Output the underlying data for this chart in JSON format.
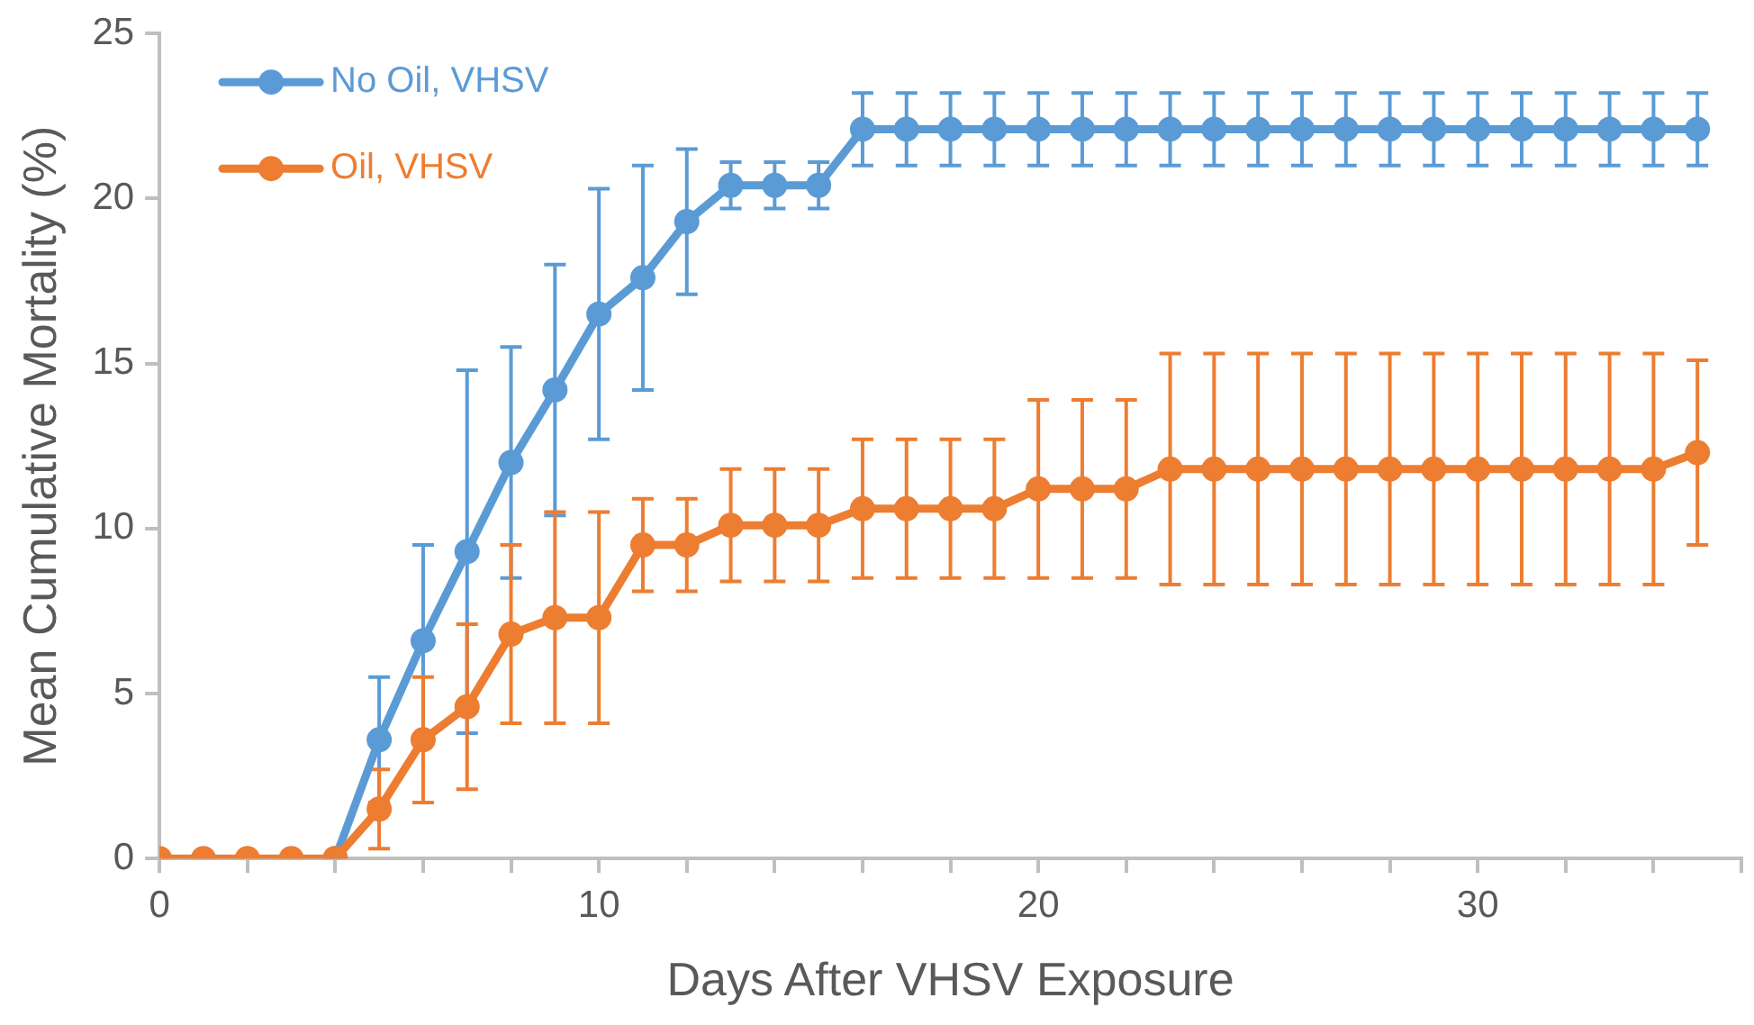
{
  "chart_data": {
    "type": "line",
    "xlabel": "Days After VHSV Exposure",
    "ylabel": "Mean Cumulative Mortality (%)",
    "x": [
      0,
      1,
      2,
      3,
      4,
      5,
      6,
      7,
      8,
      9,
      10,
      11,
      12,
      13,
      14,
      15,
      16,
      17,
      18,
      19,
      20,
      21,
      22,
      23,
      24,
      25,
      26,
      27,
      28,
      29,
      30,
      31,
      32,
      33,
      34,
      35
    ],
    "series": [
      {
        "name": "No Oil, VHSV",
        "color": "#5b9bd5",
        "values": [
          null,
          null,
          null,
          null,
          0,
          3.6,
          6.6,
          9.3,
          12.0,
          14.2,
          16.5,
          17.6,
          19.3,
          20.4,
          20.4,
          20.4,
          22.1,
          22.1,
          22.1,
          22.1,
          22.1,
          22.1,
          22.1,
          22.1,
          22.1,
          22.1,
          22.1,
          22.1,
          22.1,
          22.1,
          22.1,
          22.1,
          22.1,
          22.1,
          22.1,
          22.1
        ],
        "errors": [
          null,
          null,
          null,
          null,
          null,
          1.9,
          2.9,
          5.5,
          3.5,
          3.8,
          3.8,
          3.4,
          2.2,
          0.7,
          0.7,
          0.7,
          1.1,
          1.1,
          1.1,
          1.1,
          1.1,
          1.1,
          1.1,
          1.1,
          1.1,
          1.1,
          1.1,
          1.1,
          1.1,
          1.1,
          1.1,
          1.1,
          1.1,
          1.1,
          1.1,
          1.1
        ]
      },
      {
        "name": "Oil, VHSV",
        "color": "#ed7d31",
        "values": [
          0,
          0,
          0,
          0,
          0,
          1.5,
          3.6,
          4.6,
          6.8,
          7.3,
          7.3,
          9.5,
          9.5,
          10.1,
          10.1,
          10.1,
          10.6,
          10.6,
          10.6,
          10.6,
          11.2,
          11.2,
          11.2,
          11.8,
          11.8,
          11.8,
          11.8,
          11.8,
          11.8,
          11.8,
          11.8,
          11.8,
          11.8,
          11.8,
          11.8,
          12.3
        ],
        "errors": [
          null,
          null,
          null,
          null,
          null,
          1.2,
          1.9,
          2.5,
          2.7,
          3.2,
          3.2,
          1.4,
          1.4,
          1.7,
          1.7,
          1.7,
          2.1,
          2.1,
          2.1,
          2.1,
          2.7,
          2.7,
          2.7,
          3.5,
          3.5,
          3.5,
          3.5,
          3.5,
          3.5,
          3.5,
          3.5,
          3.5,
          3.5,
          3.5,
          3.5,
          2.8
        ]
      }
    ],
    "xlim": [
      0,
      36
    ],
    "xticks": [
      0,
      {
        "value": 2,
        "label": null
      },
      {
        "value": 4,
        "label": null
      },
      {
        "value": 6,
        "label": null
      },
      {
        "value": 8,
        "label": null
      },
      10,
      {
        "value": 12,
        "label": null
      },
      {
        "value": 14,
        "label": null
      },
      {
        "value": 16,
        "label": null
      },
      {
        "value": 18,
        "label": null
      },
      20,
      {
        "value": 22,
        "label": null
      },
      {
        "value": 24,
        "label": null
      },
      {
        "value": 26,
        "label": null
      },
      {
        "value": 28,
        "label": null
      },
      30,
      {
        "value": 32,
        "label": null
      },
      {
        "value": 34,
        "label": null
      },
      {
        "value": 36,
        "label": null
      }
    ],
    "ylim": [
      0,
      25
    ],
    "yticks": [
      0,
      5,
      10,
      15,
      20,
      25
    ],
    "grid": false,
    "legend": "top left",
    "marker": "circle",
    "line_style": "solid"
  }
}
